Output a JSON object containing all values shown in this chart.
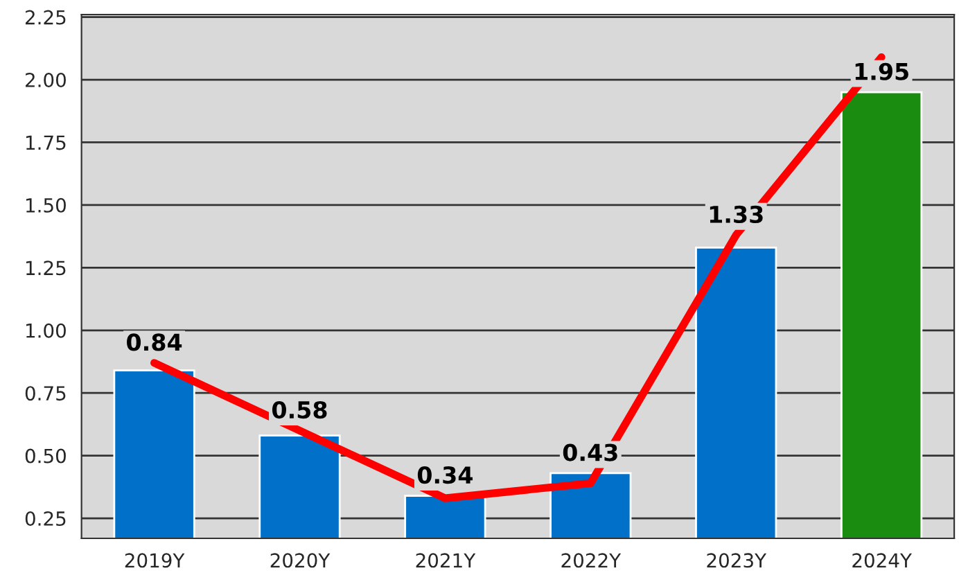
{
  "chart_data": {
    "type": "bar",
    "categories": [
      "2019Y",
      "2020Y",
      "2021Y",
      "2022Y",
      "2023Y",
      "2024Y"
    ],
    "series": [
      {
        "colors": [
          "#0070c8",
          "#0070c8",
          "#0070c8",
          "#0070c8",
          "#0070c8",
          "#1a8c10"
        ],
        "values": [
          0.84,
          0.58,
          0.34,
          0.43,
          1.33,
          1.95
        ],
        "value_labels": [
          "0.84",
          "0.58",
          "0.34",
          "0.43",
          "1.33",
          "1.95"
        ]
      },
      {
        "type": "line",
        "color": "#ff0000",
        "values": [
          0.87,
          0.6,
          0.33,
          0.39,
          1.38,
          2.09
        ]
      }
    ],
    "ylim": [
      0.17,
      2.26
    ],
    "yticks": [
      {
        "value": 0.25,
        "label": "0.25"
      },
      {
        "value": 0.5,
        "label": "0.50"
      },
      {
        "value": 0.75,
        "label": "0.75"
      },
      {
        "value": 1.0,
        "label": "1.00"
      },
      {
        "value": 1.25,
        "label": "1.25"
      },
      {
        "value": 1.5,
        "label": "1.50"
      },
      {
        "value": 1.75,
        "label": "1.75"
      },
      {
        "value": 2.0,
        "label": "2.00"
      },
      {
        "value": 2.25,
        "label": "2.25"
      }
    ],
    "grid": "y",
    "legend": false
  }
}
